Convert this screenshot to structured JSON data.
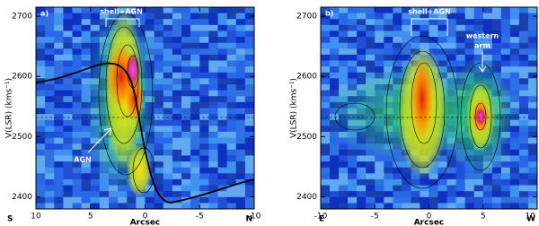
{
  "chart_data": [
    {
      "type": "pv-diagram",
      "panel_label": "a)",
      "x_label": "Arcsec",
      "y_label": "V(LSR) (kms⁻¹)",
      "x_start_label": "S",
      "x_end_label": "N",
      "xlim": [
        10,
        -10
      ],
      "xticks": [
        10,
        5,
        0,
        -5,
        -10
      ],
      "ylim": [
        2380,
        2715
      ],
      "yticks": [
        2400,
        2500,
        2600,
        2700
      ],
      "annotations": [
        "shell+AGN",
        "AGN"
      ]
    },
    {
      "type": "pv-diagram",
      "panel_label": "b)",
      "x_label": "Arcsec",
      "y_label": "V(LSR) (kms⁻¹)",
      "x_start_label": "E",
      "x_end_label": "W",
      "xlim": [
        -10,
        10
      ],
      "xticks": [
        -10,
        -5,
        0,
        5,
        10
      ],
      "ylim": [
        2380,
        2715
      ],
      "yticks": [
        2400,
        2500,
        2600,
        2700
      ],
      "annotations": [
        "shell+AGN",
        "western",
        "arm"
      ]
    }
  ]
}
